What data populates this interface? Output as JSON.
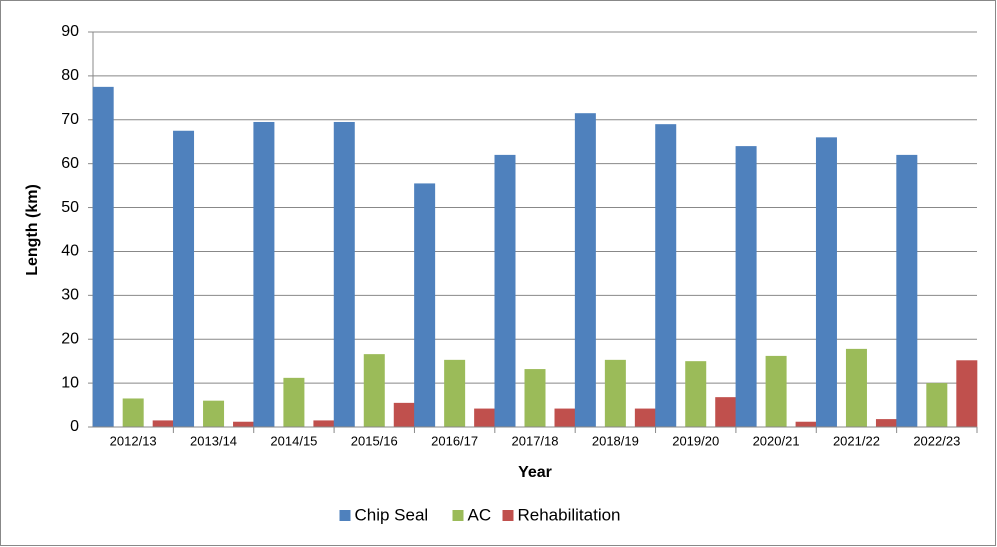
{
  "chart_data": {
    "type": "bar",
    "categories": [
      "2012/13",
      "2013/14",
      "2014/15",
      "2015/16",
      "2016/17",
      "2017/18",
      "2018/19",
      "2019/20",
      "2020/21",
      "2021/22",
      "2022/23"
    ],
    "series": [
      {
        "name": "Chip Seal",
        "color": "#4f81bd",
        "values": [
          77.5,
          67.5,
          69.5,
          69.5,
          55.5,
          62,
          71.5,
          69,
          64,
          66,
          62
        ]
      },
      {
        "name": "AC",
        "color": "#9bbb59",
        "values": [
          6.5,
          6,
          11.2,
          16.6,
          15.3,
          13.2,
          15.3,
          15,
          16.2,
          17.8,
          10
        ]
      },
      {
        "name": "Rehabilitation",
        "color": "#c0504d",
        "values": [
          1.5,
          1.2,
          1.5,
          5.5,
          4.2,
          4.2,
          4.2,
          6.8,
          1.2,
          1.8,
          15.2
        ]
      }
    ],
    "xlabel": "Year",
    "ylabel": "Length (km)",
    "ylim": [
      0,
      90
    ],
    "yticks": [
      0,
      10,
      20,
      30,
      40,
      50,
      60,
      70,
      80,
      90
    ],
    "grid": true,
    "legend": "bottom"
  }
}
